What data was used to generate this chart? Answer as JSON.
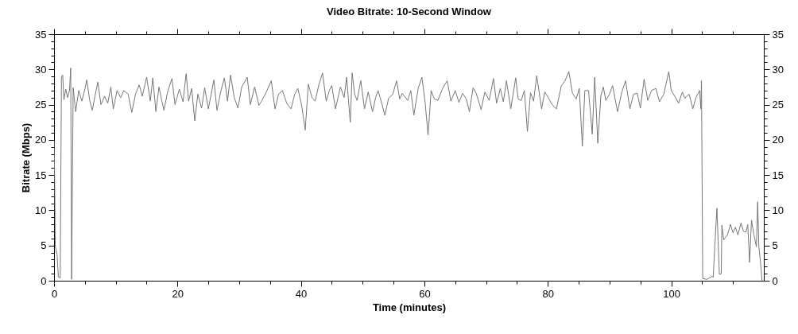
{
  "chart_data": {
    "type": "line",
    "title": "Video Bitrate: 10-Second Window",
    "xlabel": "Time (minutes)",
    "ylabel": "Bitrate (Mbps)",
    "xlim": [
      0,
      115
    ],
    "ylim": [
      0,
      35
    ],
    "y2lim": [
      0,
      35
    ],
    "xticks": [
      0,
      {
        "value": 5,
        "label": null
      },
      {
        "value": 10,
        "label": null
      },
      {
        "value": 15,
        "label": null
      },
      20,
      {
        "value": 25,
        "label": null
      },
      {
        "value": 30,
        "label": null
      },
      {
        "value": 35,
        "label": null
      },
      40,
      {
        "value": 45,
        "label": null
      },
      {
        "value": 50,
        "label": null
      },
      {
        "value": 55,
        "label": null
      },
      60,
      {
        "value": 65,
        "label": null
      },
      {
        "value": 70,
        "label": null
      },
      {
        "value": 75,
        "label": null
      },
      80,
      {
        "value": 85,
        "label": null
      },
      {
        "value": 90,
        "label": null
      },
      {
        "value": 95,
        "label": null
      },
      100,
      {
        "value": 105,
        "label": null
      },
      {
        "value": 110,
        "label": null
      }
    ],
    "yticks": [
      0,
      {
        "value": 1,
        "label": null
      },
      {
        "value": 2,
        "label": null
      },
      {
        "value": 3,
        "label": null
      },
      {
        "value": 4,
        "label": null
      },
      5,
      {
        "value": 6,
        "label": null
      },
      {
        "value": 7,
        "label": null
      },
      {
        "value": 8,
        "label": null
      },
      {
        "value": 9,
        "label": null
      },
      10,
      {
        "value": 11,
        "label": null
      },
      {
        "value": 12,
        "label": null
      },
      {
        "value": 13,
        "label": null
      },
      {
        "value": 14,
        "label": null
      },
      15,
      {
        "value": 16,
        "label": null
      },
      {
        "value": 17,
        "label": null
      },
      {
        "value": 18,
        "label": null
      },
      {
        "value": 19,
        "label": null
      },
      20,
      {
        "value": 21,
        "label": null
      },
      {
        "value": 22,
        "label": null
      },
      {
        "value": 23,
        "label": null
      },
      {
        "value": 24,
        "label": null
      },
      25,
      {
        "value": 26,
        "label": null
      },
      {
        "value": 27,
        "label": null
      },
      {
        "value": 28,
        "label": null
      },
      {
        "value": 29,
        "label": null
      },
      30,
      {
        "value": 31,
        "label": null
      },
      {
        "value": 32,
        "label": null
      },
      {
        "value": 33,
        "label": null
      },
      {
        "value": 34,
        "label": null
      },
      35
    ],
    "y2ticks": [
      0,
      {
        "value": 1,
        "label": null
      },
      {
        "value": 2,
        "label": null
      },
      {
        "value": 3,
        "label": null
      },
      {
        "value": 4,
        "label": null
      },
      5,
      {
        "value": 6,
        "label": null
      },
      {
        "value": 7,
        "label": null
      },
      {
        "value": 8,
        "label": null
      },
      {
        "value": 9,
        "label": null
      },
      10,
      {
        "value": 11,
        "label": null
      },
      {
        "value": 12,
        "label": null
      },
      {
        "value": 13,
        "label": null
      },
      {
        "value": 14,
        "label": null
      },
      15,
      {
        "value": 16,
        "label": null
      },
      {
        "value": 17,
        "label": null
      },
      {
        "value": 18,
        "label": null
      },
      {
        "value": 19,
        "label": null
      },
      20,
      {
        "value": 21,
        "label": null
      },
      {
        "value": 22,
        "label": null
      },
      {
        "value": 23,
        "label": null
      },
      {
        "value": 24,
        "label": null
      },
      25,
      {
        "value": 26,
        "label": null
      },
      {
        "value": 27,
        "label": null
      },
      {
        "value": 28,
        "label": null
      },
      {
        "value": 29,
        "label": null
      },
      30,
      {
        "value": 31,
        "label": null
      },
      {
        "value": 32,
        "label": null
      },
      {
        "value": 33,
        "label": null
      },
      {
        "value": 34,
        "label": null
      },
      35
    ],
    "grid": false,
    "legend": false,
    "x": [
      0,
      0.1,
      0.2,
      0.5,
      0.7,
      1.0,
      1.2,
      1.4,
      1.6,
      1.9,
      2.2,
      2.5,
      2.7,
      2.85,
      3.1,
      3.5,
      4.0,
      4.5,
      5.0,
      5.3,
      5.8,
      6.2,
      6.7,
      7.1,
      7.6,
      8.2,
      8.7,
      9.2,
      9.6,
      10.2,
      10.8,
      11.3,
      12.0,
      12.6,
      13.2,
      13.8,
      14.3,
      15.0,
      15.6,
      16.0,
      16.5,
      17.0,
      17.4,
      17.8,
      18.4,
      19.1,
      19.6,
      20.3,
      20.9,
      21.4,
      21.8,
      22.3,
      22.8,
      23.3,
      23.9,
      24.4,
      25.0,
      25.9,
      26.4,
      27.0,
      27.6,
      28.1,
      28.6,
      29.2,
      29.8,
      30.4,
      31.3,
      31.8,
      32.5,
      33.2,
      33.7,
      34.4,
      35.2,
      35.8,
      36.4,
      37.0,
      37.7,
      38.4,
      39.0,
      39.5,
      40.1,
      40.7,
      41.2,
      41.8,
      42.3,
      42.9,
      43.5,
      44.1,
      44.6,
      45.0,
      45.6,
      46.4,
      47.0,
      47.4,
      48.0,
      48.3,
      48.7,
      49.1,
      49.7,
      50.3,
      50.9,
      51.6,
      52.1,
      52.5,
      53.0,
      53.6,
      54.2,
      54.9,
      55.5,
      56.0,
      56.4,
      57.3,
      57.8,
      58.3,
      59.0,
      59.6,
      60.1,
      60.6,
      61.1,
      61.6,
      62.2,
      62.9,
      63.7,
      64.3,
      65.0,
      65.6,
      66.2,
      66.8,
      67.3,
      67.9,
      68.4,
      69.2,
      69.8,
      70.5,
      71.2,
      71.7,
      72.3,
      72.8,
      73.3,
      74.0,
      74.8,
      75.2,
      75.7,
      76.2,
      76.7,
      77.2,
      77.7,
      78.2,
      79.0,
      79.5,
      80.0,
      80.7,
      81.4,
      82.2,
      82.8,
      83.4,
      84.0,
      84.6,
      85.1,
      85.6,
      86.0,
      86.6,
      87.2,
      87.6,
      88.1,
      88.6,
      89.0,
      89.4,
      90.0,
      90.5,
      91.3,
      92.0,
      92.6,
      93.3,
      93.9,
      94.5,
      95.0,
      95.6,
      96.2,
      96.8,
      97.5,
      98.1,
      98.8,
      99.6,
      100.0,
      100.5,
      101.2,
      101.8,
      102.2,
      102.9,
      103.5,
      104.0,
      104.6,
      104.8,
      104.9,
      105.1,
      105.8,
      106.6,
      106.8,
      107.1,
      107.4,
      107.6,
      107.8,
      108.1,
      108.2,
      108.5,
      109.1,
      109.6,
      110.0,
      110.4,
      110.8,
      111.3,
      111.7,
      112.1,
      112.4,
      112.7,
      113.0,
      113.4,
      113.8,
      114.0,
      114.2,
      114.5,
      114.7
    ],
    "series": [
      {
        "color": "#777777",
        "values": [
          19.9,
          14.3,
          4.9,
          3.7,
          0.5,
          0.4,
          28.9,
          29.2,
          25.7,
          27.2,
          26.0,
          27.0,
          30.2,
          0.2,
          27.4,
          24.0,
          27.0,
          25.5,
          27.2,
          28.5,
          25.5,
          24.2,
          26.5,
          28.2,
          25.0,
          26.2,
          25.2,
          27.5,
          24.4,
          27.0,
          26.0,
          27.0,
          26.5,
          23.9,
          26.5,
          27.8,
          26.2,
          28.9,
          25.5,
          28.8,
          24.0,
          27.5,
          25.8,
          24.2,
          26.8,
          28.7,
          25.0,
          27.2,
          25.4,
          29.4,
          25.5,
          27.3,
          22.7,
          26.5,
          24.5,
          27.4,
          24.4,
          28.5,
          24.2,
          26.8,
          28.8,
          25.5,
          29.2,
          26.0,
          24.5,
          27.5,
          28.9,
          25.0,
          27.5,
          24.9,
          25.6,
          26.8,
          28.4,
          24.4,
          26.5,
          27.0,
          25.2,
          24.4,
          26.5,
          27.3,
          25.0,
          21.4,
          27.9,
          26.0,
          25.5,
          27.8,
          29.5,
          25.5,
          27.0,
          27.7,
          24.4,
          27.5,
          26.0,
          28.9,
          22.5,
          29.5,
          26.5,
          25.6,
          28.4,
          24.4,
          26.8,
          24.0,
          26.0,
          27.0,
          25.5,
          23.5,
          25.9,
          26.5,
          28.4,
          25.8,
          26.6,
          25.6,
          27.0,
          23.5,
          27.3,
          28.9,
          25.5,
          20.7,
          27.0,
          25.8,
          25.6,
          27.2,
          28.4,
          25.5,
          27.0,
          25.3,
          26.6,
          25.8,
          24.0,
          27.4,
          26.6,
          24.3,
          26.8,
          25.6,
          28.7,
          25.2,
          27.3,
          25.4,
          28.4,
          24.4,
          28.8,
          25.8,
          25.6,
          27.0,
          21.2,
          26.7,
          25.5,
          29.1,
          24.4,
          26.8,
          26.1,
          25.0,
          24.4,
          27.7,
          28.4,
          29.7,
          26.6,
          25.8,
          27.3,
          19.1,
          27.0,
          27.0,
          20.8,
          28.9,
          19.5,
          26.3,
          27.5,
          25.6,
          26.5,
          27.7,
          24.0,
          26.8,
          28.4,
          24.4,
          26.5,
          26.6,
          24.5,
          28.6,
          25.6,
          27.0,
          27.3,
          25.4,
          26.5,
          29.7,
          27.0,
          26.3,
          25.2,
          26.8,
          25.9,
          26.5,
          24.4,
          26.0,
          27.0,
          24.4,
          28.4,
          0.3,
          0.2,
          0.6,
          0.5,
          5.6,
          10.3,
          5.6,
          0.9,
          1.0,
          7.9,
          5.8,
          6.5,
          8.0,
          6.8,
          7.6,
          6.5,
          8.2,
          7.0,
          6.9,
          8.0,
          2.6,
          8.6,
          6.5,
          4.8,
          11.2,
          4.8,
          2.3,
          0.0
        ]
      }
    ]
  }
}
